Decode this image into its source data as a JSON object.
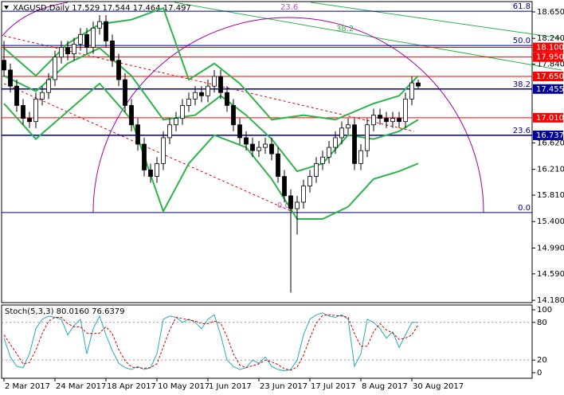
{
  "chart_data": [
    {
      "type": "candlestick",
      "title": "XAGUSD,Daily  17.529 17.544 17.464 17.497",
      "categories": [
        "2 Mar 2017",
        null,
        null,
        null,
        null,
        null,
        null,
        null,
        "24 Mar 2017",
        null,
        null,
        null,
        null,
        null,
        null,
        null,
        "18 Apr 2017",
        null,
        null,
        null,
        null,
        null,
        null,
        null,
        "10 May 2017",
        null,
        null,
        null,
        null,
        null,
        null,
        null,
        "1 Jun 2017",
        null,
        null,
        null,
        null,
        null,
        null,
        null,
        "23 Jun 2017",
        null,
        null,
        null,
        null,
        null,
        null,
        null,
        "17 Jul 2017",
        null,
        null,
        null,
        null,
        null,
        null,
        null,
        "8 Aug 2017",
        null,
        null,
        null,
        null,
        null,
        null,
        null,
        "30 Aug 2017",
        null
      ],
      "open": [
        17.9,
        17.75,
        17.5,
        17.2,
        17.0,
        16.95,
        17.3,
        17.4,
        17.6,
        17.95,
        18.1,
        18.0,
        18.15,
        18.3,
        18.1,
        18.4,
        18.5,
        18.2,
        17.9,
        17.6,
        17.2,
        16.9,
        16.6,
        16.2,
        16.1,
        16.3,
        16.7,
        16.9,
        17.0,
        17.2,
        17.3,
        17.4,
        17.35,
        17.5,
        17.65,
        17.4,
        17.2,
        16.9,
        16.7,
        16.6,
        16.5,
        16.55,
        16.6,
        16.45,
        16.1,
        15.8,
        15.6,
        15.7,
        15.95,
        16.1,
        16.3,
        16.4,
        16.55,
        16.7,
        16.85,
        16.9,
        16.3,
        16.5,
        16.9,
        17.05,
        17.0,
        16.95,
        17.0,
        16.95,
        17.3,
        17.55
      ],
      "high": [
        18.2,
        17.85,
        17.6,
        17.3,
        17.1,
        17.4,
        17.5,
        17.7,
        18.05,
        18.2,
        18.2,
        18.25,
        18.4,
        18.4,
        18.5,
        18.6,
        18.6,
        18.3,
        18.0,
        17.7,
        17.3,
        17.0,
        16.7,
        16.3,
        16.4,
        16.8,
        17.0,
        17.1,
        17.3,
        17.4,
        17.5,
        17.5,
        17.6,
        17.75,
        17.75,
        17.5,
        17.3,
        17.0,
        16.8,
        16.7,
        16.65,
        16.7,
        16.7,
        16.55,
        16.2,
        15.9,
        15.8,
        16.05,
        16.2,
        16.4,
        16.5,
        16.65,
        16.8,
        16.95,
        17.0,
        17.0,
        16.6,
        17.0,
        17.15,
        17.15,
        17.1,
        17.1,
        17.1,
        17.4,
        17.65,
        17.6
      ],
      "low": [
        17.65,
        17.4,
        17.1,
        16.9,
        16.85,
        16.85,
        17.2,
        17.3,
        17.5,
        17.85,
        17.9,
        17.9,
        18.05,
        18.0,
        18.0,
        18.3,
        18.1,
        17.8,
        17.5,
        17.1,
        16.8,
        16.5,
        16.1,
        16.0,
        16.0,
        16.2,
        16.6,
        16.8,
        16.9,
        17.1,
        17.2,
        17.25,
        17.25,
        17.4,
        17.3,
        17.1,
        16.8,
        16.6,
        16.5,
        16.4,
        16.4,
        16.45,
        16.35,
        16.0,
        15.7,
        14.3,
        15.2,
        15.6,
        15.85,
        16.0,
        16.2,
        16.3,
        16.45,
        16.6,
        16.75,
        16.2,
        16.2,
        16.4,
        16.8,
        16.9,
        16.85,
        16.85,
        16.85,
        16.85,
        17.2,
        17.45
      ],
      "close": [
        17.75,
        17.5,
        17.2,
        17.0,
        16.95,
        17.3,
        17.4,
        17.6,
        17.95,
        18.1,
        18.0,
        18.15,
        18.3,
        18.1,
        18.4,
        18.5,
        18.2,
        17.9,
        17.6,
        17.2,
        16.9,
        16.6,
        16.2,
        16.1,
        16.3,
        16.7,
        16.9,
        17.0,
        17.2,
        17.3,
        17.4,
        17.35,
        17.5,
        17.65,
        17.4,
        17.2,
        16.9,
        16.7,
        16.6,
        16.5,
        16.55,
        16.6,
        16.45,
        16.1,
        15.8,
        15.6,
        15.7,
        15.95,
        16.1,
        16.3,
        16.4,
        16.55,
        16.7,
        16.85,
        16.9,
        16.3,
        16.5,
        16.9,
        17.05,
        17.0,
        16.95,
        17.0,
        16.95,
        17.3,
        17.55,
        17.5
      ],
      "bands": [
        {
          "color": "#2db34a",
          "x": [
            0,
            5,
            10,
            15,
            20,
            25,
            29,
            33,
            37,
            42,
            47,
            52,
            58,
            62,
            65
          ],
          "values": [
            18.09,
            17.66,
            18.16,
            18.46,
            18.53,
            18.71,
            17.6,
            17.85,
            17.54,
            16.98,
            17.05,
            16.98,
            17.23,
            17.35,
            17.66
          ]
        },
        {
          "color": "#2db34a",
          "x": [
            0,
            5,
            10,
            15,
            20,
            25,
            30,
            34,
            38,
            42,
            46,
            50,
            54,
            58,
            62,
            65
          ],
          "values": [
            17.66,
            17.42,
            17.85,
            18.09,
            17.66,
            16.98,
            17.05,
            17.35,
            17.05,
            16.68,
            16.18,
            16.3,
            16.74,
            16.68,
            16.8,
            16.98
          ]
        },
        {
          "color": "#2db34a",
          "x": [
            0,
            5,
            10,
            15,
            20,
            25,
            29,
            33,
            38,
            42,
            46,
            50,
            54,
            58,
            62,
            65
          ],
          "values": [
            17.23,
            16.68,
            17.11,
            17.54,
            16.98,
            15.56,
            16.3,
            16.74,
            16.55,
            16.06,
            15.44,
            15.44,
            15.63,
            16.06,
            16.18,
            16.3
          ]
        }
      ],
      "levels": [
        {
          "value": 18.1,
          "label": "18.100",
          "color": "#ff0000"
        },
        {
          "value": 17.95,
          "label": "17.950",
          "color": "#ff0000"
        },
        {
          "value": 17.65,
          "label": "17.650",
          "color": "#ff0000"
        },
        {
          "value": 17.455,
          "label": "17.455",
          "color": "#0000a0"
        },
        {
          "value": 17.01,
          "label": "17.010",
          "color": "#ff0000"
        },
        {
          "value": 16.737,
          "label": "16.737",
          "color": "#0000a0"
        }
      ],
      "fib_levels": [
        {
          "value": 18.66,
          "label": "61.8"
        },
        {
          "value": 18.13,
          "label": "50.0"
        },
        {
          "value": 17.455,
          "label": "38.2"
        },
        {
          "value": 16.737,
          "label": "23.6"
        },
        {
          "value": 15.54,
          "label": "0.0"
        }
      ],
      "arc_labels": [
        "23.6",
        "0.0"
      ],
      "fan_label": "38.2",
      "ylim": [
        14.144,
        18.81
      ],
      "yticks": [
        {
          "value": 18.65,
          "label": "18.650"
        },
        {
          "value": 18.24,
          "label": "18.240"
        },
        {
          "value": 17.84,
          "label": "17.840"
        },
        {
          "value": 16.62,
          "label": "16.620"
        },
        {
          "value": 16.21,
          "label": "16.210"
        },
        {
          "value": 15.81,
          "label": "15.810"
        },
        {
          "value": 15.4,
          "label": "15.400"
        },
        {
          "value": 14.99,
          "label": "14.990"
        },
        {
          "value": 14.59,
          "label": "14.590"
        },
        {
          "value": 14.18,
          "label": "14.180"
        }
      ]
    },
    {
      "type": "line",
      "title": "Stoch(5,3,3) 80.0160 76.6379",
      "series": [
        {
          "color": "#2aa9b5",
          "values": [
            55,
            25,
            10,
            8,
            30,
            70,
            85,
            90,
            88,
            85,
            60,
            75,
            85,
            30,
            70,
            90,
            60,
            35,
            15,
            8,
            5,
            10,
            5,
            8,
            30,
            85,
            90,
            88,
            80,
            85,
            80,
            70,
            85,
            92,
            60,
            20,
            10,
            5,
            8,
            20,
            15,
            25,
            10,
            5,
            3,
            5,
            20,
            60,
            85,
            92,
            95,
            90,
            88,
            92,
            85,
            10,
            30,
            85,
            80,
            70,
            55,
            65,
            40,
            60,
            80,
            80.016
          ]
        },
        {
          "color": "#d00000",
          "dashed": true,
          "values": [
            60,
            45,
            30,
            14,
            16,
            36,
            62,
            82,
            88,
            88,
            78,
            73,
            73,
            63,
            62,
            63,
            73,
            62,
            37,
            19,
            9,
            8,
            7,
            8,
            14,
            41,
            68,
            88,
            86,
            84,
            82,
            78,
            78,
            82,
            79,
            57,
            30,
            12,
            8,
            11,
            14,
            20,
            17,
            13,
            6,
            4,
            9,
            28,
            55,
            79,
            91,
            92,
            91,
            90,
            88,
            62,
            42,
            42,
            65,
            78,
            68,
            63,
            53,
            55,
            60,
            76.6379
          ]
        }
      ],
      "levels": [
        80,
        20
      ],
      "ylim": [
        -8.9,
        107.6
      ],
      "yticks": [
        100,
        80,
        20,
        0
      ]
    }
  ]
}
